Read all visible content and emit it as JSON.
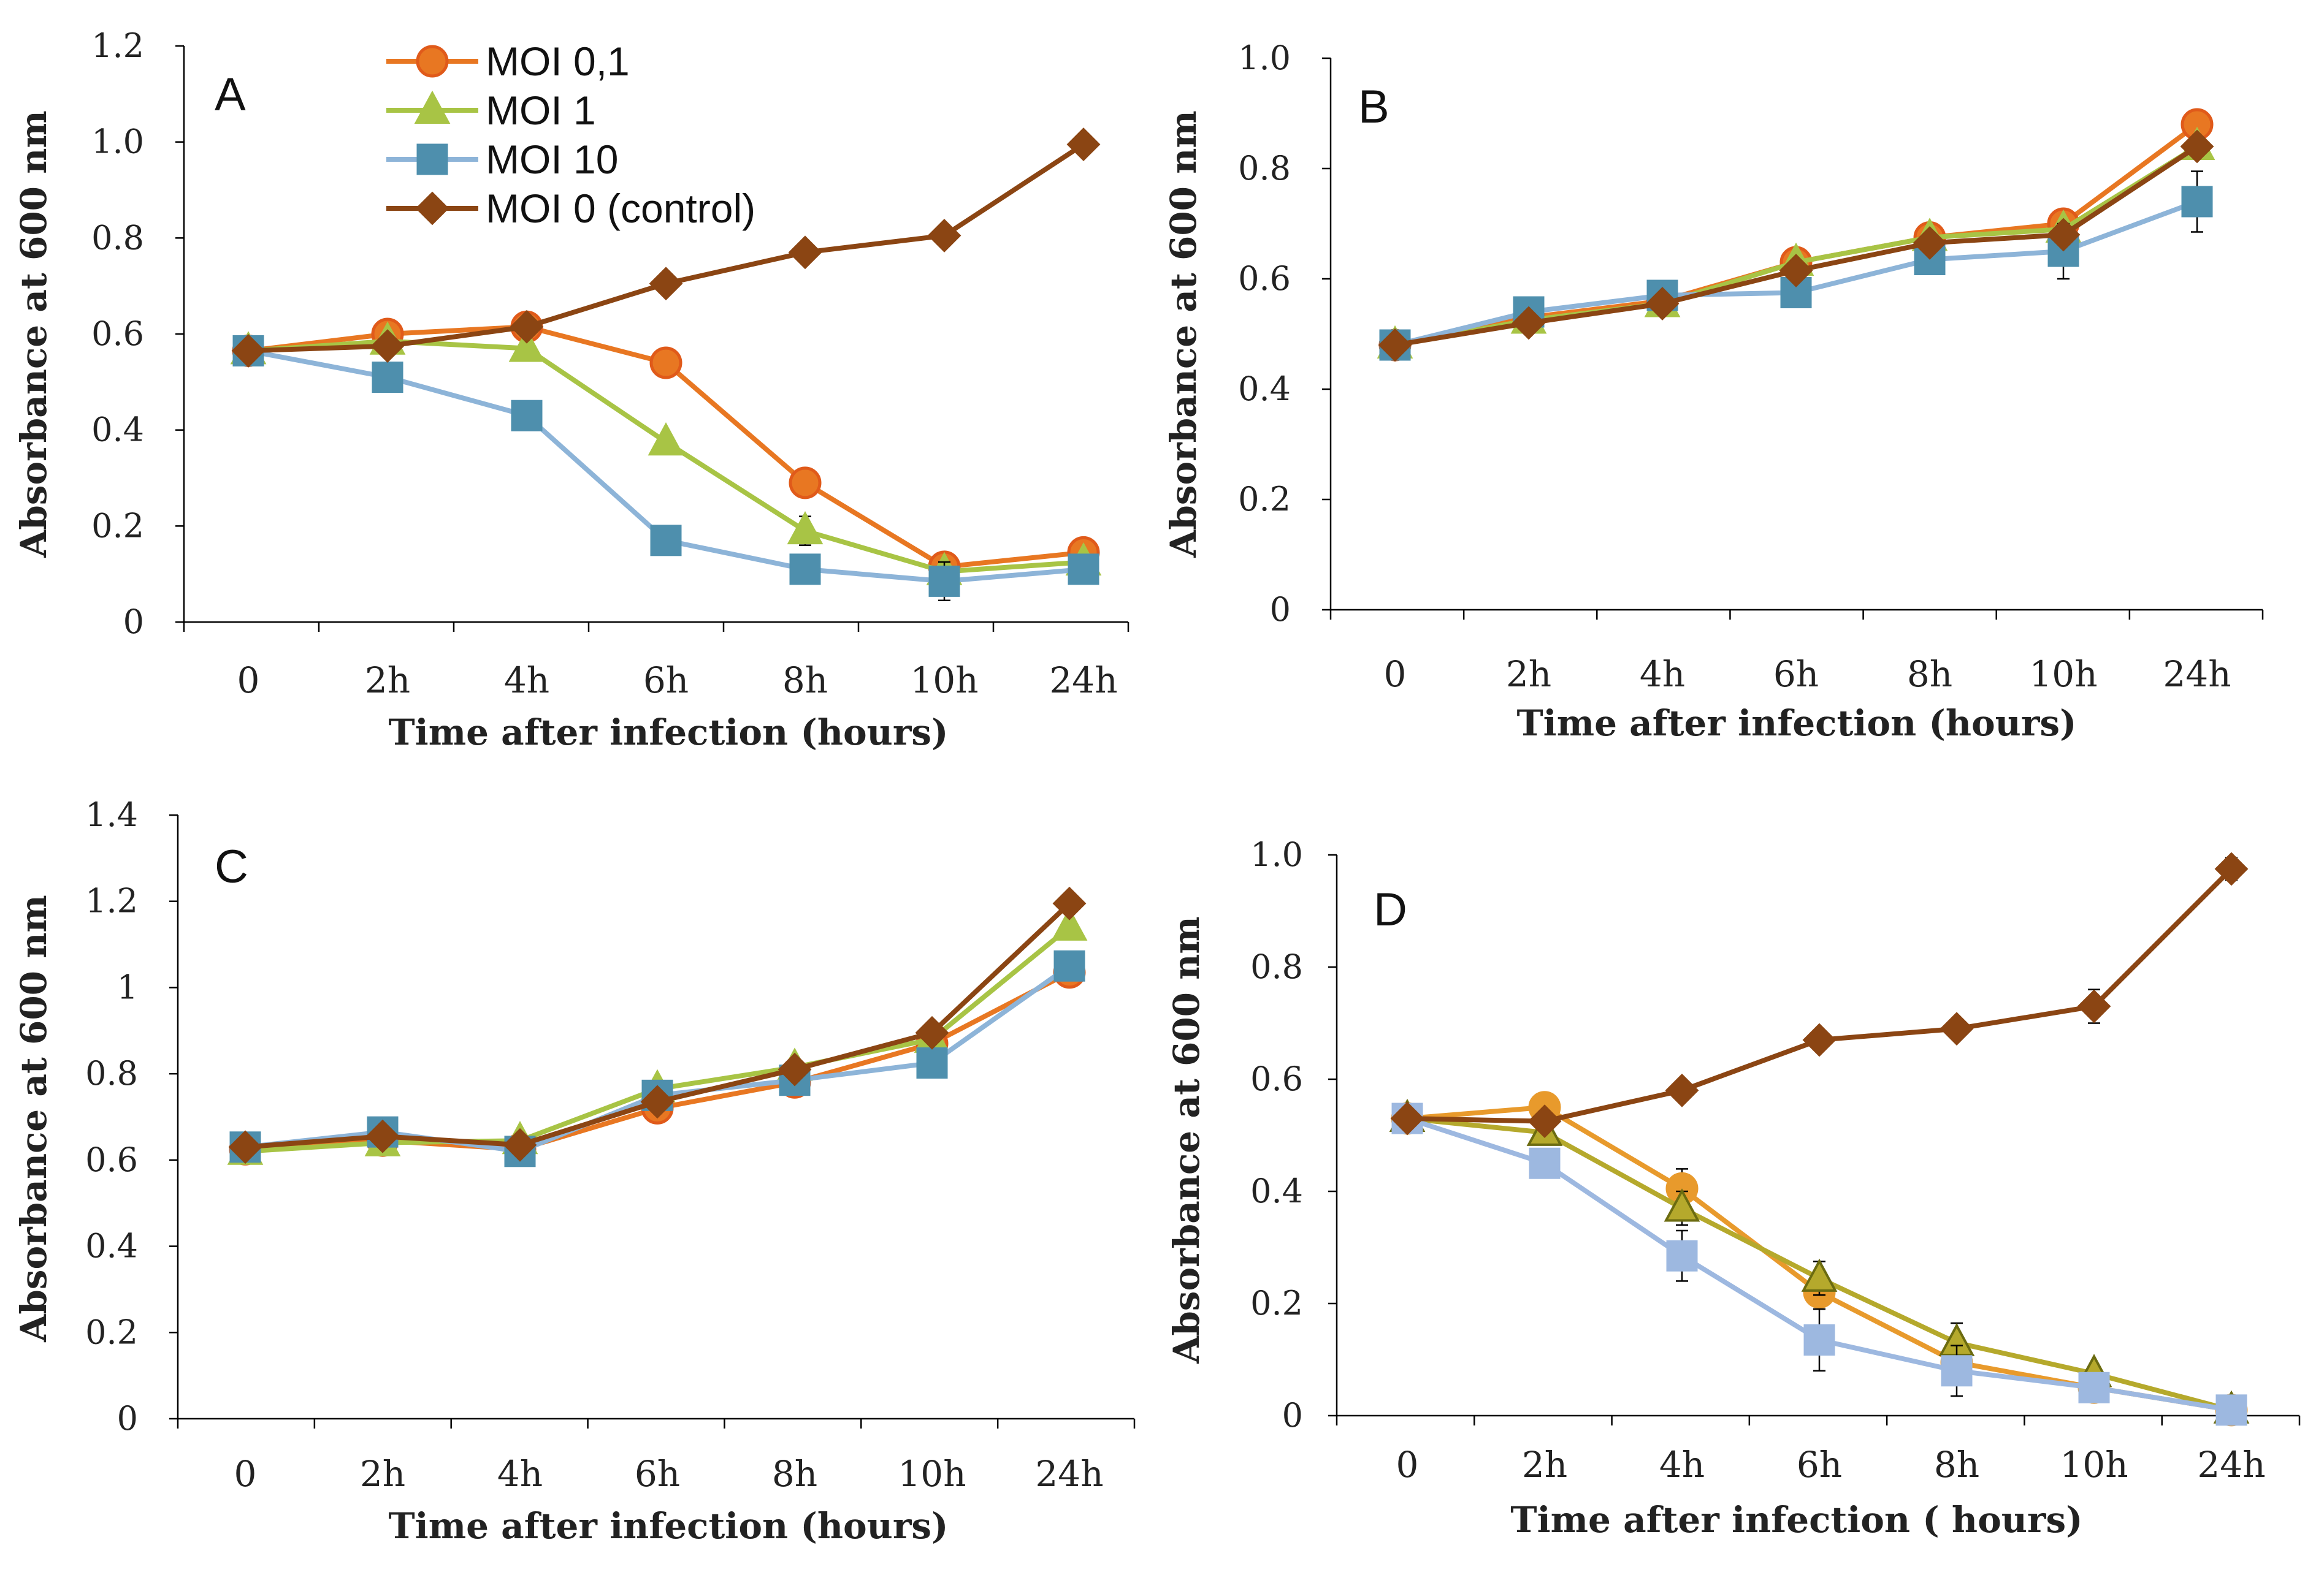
{
  "chart_data": [
    {
      "panel": "A",
      "type": "line",
      "categories": [
        "0",
        "2h",
        "4h",
        "6h",
        "8h",
        "10h",
        "24h"
      ],
      "xlabel": "Time after infection (hours)",
      "ylabel": "Absorbance at 600 nm",
      "ylim": [
        0,
        1.2
      ],
      "yticks": [
        0,
        0.2,
        0.4,
        0.6,
        0.8,
        1.0,
        1.2
      ],
      "ytick_labels": [
        "0",
        "0.2",
        "0.4",
        "0.6",
        "0.8",
        "1.0",
        "1.2"
      ],
      "series": [
        {
          "name": "MOI 0,1",
          "values": [
            0.565,
            0.6,
            0.615,
            0.54,
            0.29,
            0.115,
            0.145
          ],
          "errors": [
            0,
            0.01,
            0.01,
            0.01,
            0.02,
            0.02,
            0.01
          ]
        },
        {
          "name": "MOI 1",
          "values": [
            0.565,
            0.585,
            0.57,
            0.375,
            0.19,
            0.105,
            0.125
          ],
          "errors": [
            0,
            0.01,
            0.01,
            0.01,
            0.03,
            0.02,
            0.01
          ]
        },
        {
          "name": "MOI 10",
          "values": [
            0.565,
            0.51,
            0.43,
            0.17,
            0.11,
            0.085,
            0.11
          ],
          "errors": [
            0,
            0.01,
            0.01,
            0.01,
            0.01,
            0.04,
            0.01
          ]
        },
        {
          "name": "MOI 0 (control)",
          "values": [
            0.565,
            0.575,
            0.615,
            0.705,
            0.77,
            0.805,
            0.995
          ],
          "errors": [
            0,
            0.005,
            0.005,
            0.005,
            0.005,
            0.005,
            0.02
          ]
        }
      ]
    },
    {
      "panel": "B",
      "type": "line",
      "categories": [
        "0",
        "2h",
        "4h",
        "6h",
        "8h",
        "10h",
        "24h"
      ],
      "xlabel": "Time after infection (hours)",
      "ylabel": "Absorbance at 600 nm",
      "ylim": [
        0,
        1.0
      ],
      "yticks": [
        0,
        0.2,
        0.4,
        0.6,
        0.8,
        1.0
      ],
      "ytick_labels": [
        "0",
        "0.2",
        "0.4",
        "0.6",
        "0.8",
        "1.0"
      ],
      "series": [
        {
          "name": "MOI 0,1",
          "values": [
            0.48,
            0.53,
            0.56,
            0.63,
            0.675,
            0.7,
            0.88
          ],
          "errors": [
            0,
            0.01,
            0.01,
            0.01,
            0.01,
            0.01,
            0.01
          ]
        },
        {
          "name": "MOI 1",
          "values": [
            0.48,
            0.525,
            0.555,
            0.63,
            0.675,
            0.69,
            0.84
          ],
          "errors": [
            0,
            0.01,
            0.01,
            0.01,
            0.01,
            0.01,
            0.01
          ]
        },
        {
          "name": "MOI 10",
          "values": [
            0.48,
            0.54,
            0.57,
            0.575,
            0.635,
            0.65,
            0.74
          ],
          "errors": [
            0,
            0.01,
            0.01,
            0.01,
            0.01,
            0.05,
            0.055
          ]
        },
        {
          "name": "MOI 0 (control)",
          "values": [
            0.48,
            0.52,
            0.555,
            0.615,
            0.665,
            0.68,
            0.84
          ],
          "errors": [
            0,
            0.005,
            0.005,
            0.005,
            0.005,
            0.005,
            0.01
          ]
        }
      ]
    },
    {
      "panel": "C",
      "type": "line",
      "categories": [
        "0",
        "2h",
        "4h",
        "6h",
        "8h",
        "10h",
        "24h"
      ],
      "xlabel": "Time after infection (hours)",
      "ylabel": "Absorbance at 600 nm",
      "ylim": [
        0,
        1.4
      ],
      "yticks": [
        0,
        0.2,
        0.4,
        0.6,
        0.8,
        1.0,
        1.2,
        1.4
      ],
      "ytick_labels": [
        "0",
        "0.2",
        "0.4",
        "0.6",
        "0.8",
        "1",
        "1.2",
        "1.4"
      ],
      "series": [
        {
          "name": "MOI 0,1",
          "values": [
            0.625,
            0.645,
            0.625,
            0.72,
            0.78,
            0.87,
            1.035
          ],
          "errors": [
            0,
            0.01,
            0.01,
            0.01,
            0.01,
            0.01,
            0.02
          ]
        },
        {
          "name": "MOI 1",
          "values": [
            0.62,
            0.64,
            0.645,
            0.765,
            0.815,
            0.88,
            1.14
          ],
          "errors": [
            0,
            0.01,
            0.01,
            0.01,
            0.01,
            0.01,
            0.01
          ]
        },
        {
          "name": "MOI 10",
          "values": [
            0.63,
            0.665,
            0.62,
            0.75,
            0.785,
            0.825,
            1.05
          ],
          "errors": [
            0,
            0.01,
            0.01,
            0.01,
            0.01,
            0.01,
            0.02
          ]
        },
        {
          "name": "MOI 0 (control)",
          "values": [
            0.63,
            0.655,
            0.635,
            0.735,
            0.81,
            0.895,
            1.195
          ],
          "errors": [
            0,
            0.005,
            0.005,
            0.005,
            0.005,
            0.005,
            0.01
          ]
        }
      ]
    },
    {
      "panel": "D",
      "type": "line",
      "categories": [
        "0",
        "2h",
        "4h",
        "6h",
        "8h",
        "10h",
        "24h"
      ],
      "xlabel": "Time after infection ( hours)",
      "ylabel": "Absorbance at 600 nm",
      "ylim": [
        0,
        1.0
      ],
      "yticks": [
        0,
        0.2,
        0.4,
        0.6,
        0.8,
        1.0
      ],
      "ytick_labels": [
        "0",
        "0.2",
        "0.4",
        "0.6",
        "0.8",
        "1.0"
      ],
      "series": [
        {
          "name": "MOI 0,1",
          "values": [
            0.53,
            0.55,
            0.405,
            0.22,
            0.095,
            0.05,
            0.01
          ],
          "errors": [
            0,
            0.01,
            0.035,
            0.03,
            0.02,
            0.01,
            0.005
          ]
        },
        {
          "name": "MOI 1",
          "values": [
            0.53,
            0.505,
            0.37,
            0.245,
            0.13,
            0.075,
            0.01
          ],
          "errors": [
            0,
            0.01,
            0.03,
            0.03,
            0.035,
            0.01,
            0.005
          ]
        },
        {
          "name": "MOI 10",
          "values": [
            0.53,
            0.45,
            0.285,
            0.135,
            0.08,
            0.05,
            0.01
          ],
          "errors": [
            0,
            0.01,
            0.045,
            0.055,
            0.045,
            0.01,
            0.005
          ]
        },
        {
          "name": "MOI 0 (control)",
          "values": [
            0.53,
            0.525,
            0.58,
            0.67,
            0.69,
            0.73,
            0.975
          ],
          "errors": [
            0,
            0.005,
            0.005,
            0.005,
            0.005,
            0.03,
            0.02
          ]
        }
      ]
    }
  ],
  "legend": {
    "entries": [
      "MOI 0,1",
      "MOI 1",
      "MOI 10",
      "MOI 0 (control)"
    ]
  },
  "series_style": [
    {
      "name": "MOI 0,1",
      "color": "#E87722",
      "marker": "circle"
    },
    {
      "name": "MOI 1",
      "color": "#A8C445",
      "marker": "triangle"
    },
    {
      "name": "MOI 10",
      "color": "#8DB4D8",
      "marker": "square",
      "marker_color": "#4E8FAD"
    },
    {
      "name": "MOI 0 (control)",
      "color": "#8B4513",
      "marker": "diamond"
    }
  ],
  "panel_d_colors": {
    "MOI 0,1": "#E89A2C",
    "MOI 1": "#B5A92C",
    "MOI 10": "#9DB8E0"
  }
}
